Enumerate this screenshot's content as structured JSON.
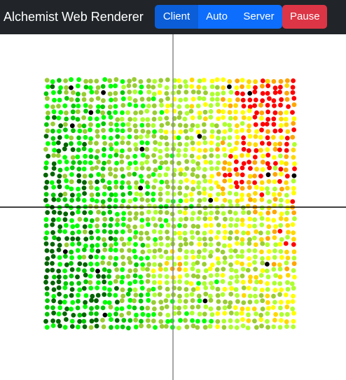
{
  "app": {
    "title": "Alchemist Web Renderer"
  },
  "toolbar": {
    "mode_buttons": [
      {
        "label": "Client",
        "active": true
      },
      {
        "label": "Auto",
        "active": false
      },
      {
        "label": "Server",
        "active": false
      }
    ],
    "pause_label": "Pause"
  },
  "colors": {
    "navbar": "#212529",
    "primary": "#0d6efd",
    "primary_active": "#0b5ed7",
    "danger": "#dc3545",
    "axis": "#000000",
    "node_palette": [
      "#006400",
      "#00c800",
      "#00ff00",
      "#99cc33",
      "#adff2f",
      "#ffff00",
      "#ffd700",
      "#ffa500",
      "#ff0000",
      "#000000"
    ]
  },
  "simulation": {
    "grid_columns": 40,
    "grid_rows": 40
  }
}
